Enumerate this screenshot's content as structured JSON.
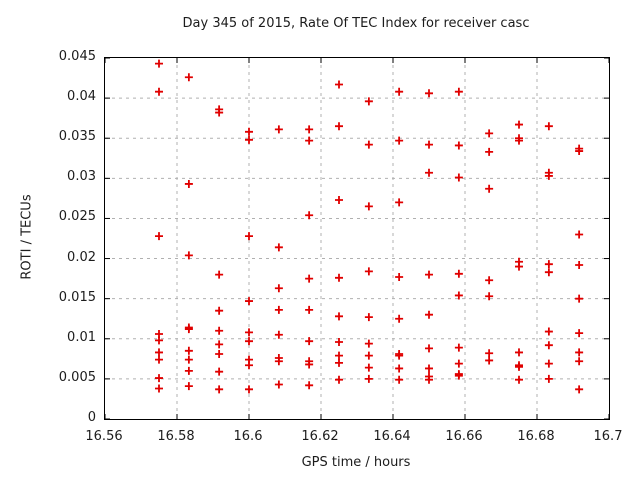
{
  "chart": {
    "title": "Day 345 of 2015, Rate Of TEC Index for receiver casc",
    "xlabel": "GPS time / hours",
    "ylabel": "ROTI / TECUs"
  },
  "chart_data": {
    "type": "scatter",
    "title": "Day 345 of 2015, Rate Of TEC Index for receiver casc",
    "xlabel": "GPS time / hours",
    "ylabel": "ROTI / TECUs",
    "xlim": [
      16.56,
      16.7
    ],
    "ylim": [
      0,
      0.045
    ],
    "xticks": [
      "16.56",
      "16.58",
      "16.6",
      "16.62",
      "16.64",
      "16.66",
      "16.68",
      "16.7"
    ],
    "xtick_values": [
      16.56,
      16.58,
      16.6,
      16.62,
      16.64,
      16.66,
      16.68,
      16.7
    ],
    "yticks": [
      "0",
      "0.005",
      "0.01",
      "0.015",
      "0.02",
      "0.025",
      "0.03",
      "0.035",
      "0.04",
      "0.045"
    ],
    "ytick_values": [
      0,
      0.005,
      0.01,
      0.015,
      0.02,
      0.025,
      0.03,
      0.035,
      0.04,
      0.045
    ],
    "grid": true,
    "legend": "none",
    "marker": {
      "symbol": "plus",
      "color": "#e00000",
      "size": 9
    },
    "points": [
      [
        16.575,
        0.0443
      ],
      [
        16.575,
        0.0408
      ],
      [
        16.575,
        0.0228
      ],
      [
        16.575,
        0.0106
      ],
      [
        16.575,
        0.0098
      ],
      [
        16.575,
        0.0083
      ],
      [
        16.575,
        0.0074
      ],
      [
        16.575,
        0.0051
      ],
      [
        16.575,
        0.0038
      ],
      [
        16.5833,
        0.0426
      ],
      [
        16.5833,
        0.0293
      ],
      [
        16.5833,
        0.0204
      ],
      [
        16.5833,
        0.0114
      ],
      [
        16.5833,
        0.0112
      ],
      [
        16.5833,
        0.0085
      ],
      [
        16.5833,
        0.0074
      ],
      [
        16.5833,
        0.006
      ],
      [
        16.5833,
        0.0041
      ],
      [
        16.5917,
        0.0386
      ],
      [
        16.5917,
        0.0382
      ],
      [
        16.5917,
        0.018
      ],
      [
        16.5917,
        0.0135
      ],
      [
        16.5917,
        0.011
      ],
      [
        16.5917,
        0.0093
      ],
      [
        16.5917,
        0.0081
      ],
      [
        16.5917,
        0.0059
      ],
      [
        16.5917,
        0.0037
      ],
      [
        16.6,
        0.0358
      ],
      [
        16.6,
        0.0348
      ],
      [
        16.6,
        0.0228
      ],
      [
        16.6,
        0.0147
      ],
      [
        16.6,
        0.0108
      ],
      [
        16.6,
        0.0097
      ],
      [
        16.6,
        0.0074
      ],
      [
        16.6,
        0.0067
      ],
      [
        16.6,
        0.0037
      ],
      [
        16.6083,
        0.0361
      ],
      [
        16.6083,
        0.0214
      ],
      [
        16.6083,
        0.0163
      ],
      [
        16.6083,
        0.0136
      ],
      [
        16.6083,
        0.0105
      ],
      [
        16.6083,
        0.0076
      ],
      [
        16.6083,
        0.0072
      ],
      [
        16.6083,
        0.0043
      ],
      [
        16.6167,
        0.0361
      ],
      [
        16.6167,
        0.0347
      ],
      [
        16.6167,
        0.0254
      ],
      [
        16.6167,
        0.0175
      ],
      [
        16.6167,
        0.0136
      ],
      [
        16.6167,
        0.0097
      ],
      [
        16.6167,
        0.0072
      ],
      [
        16.6167,
        0.0068
      ],
      [
        16.6167,
        0.0042
      ],
      [
        16.625,
        0.0417
      ],
      [
        16.625,
        0.0365
      ],
      [
        16.625,
        0.0273
      ],
      [
        16.625,
        0.0176
      ],
      [
        16.625,
        0.0128
      ],
      [
        16.625,
        0.0096
      ],
      [
        16.625,
        0.0079
      ],
      [
        16.625,
        0.007
      ],
      [
        16.625,
        0.0049
      ],
      [
        16.6333,
        0.0396
      ],
      [
        16.6333,
        0.0342
      ],
      [
        16.6333,
        0.0265
      ],
      [
        16.6333,
        0.0184
      ],
      [
        16.6333,
        0.0127
      ],
      [
        16.6333,
        0.0094
      ],
      [
        16.6333,
        0.0079
      ],
      [
        16.6333,
        0.0064
      ],
      [
        16.6333,
        0.005
      ],
      [
        16.6417,
        0.0408
      ],
      [
        16.6417,
        0.0347
      ],
      [
        16.6417,
        0.027
      ],
      [
        16.6417,
        0.0177
      ],
      [
        16.6417,
        0.0125
      ],
      [
        16.6417,
        0.0081
      ],
      [
        16.6417,
        0.0079
      ],
      [
        16.6417,
        0.0063
      ],
      [
        16.6417,
        0.0049
      ],
      [
        16.65,
        0.0406
      ],
      [
        16.65,
        0.0342
      ],
      [
        16.65,
        0.0307
      ],
      [
        16.65,
        0.018
      ],
      [
        16.65,
        0.013
      ],
      [
        16.65,
        0.0088
      ],
      [
        16.65,
        0.0063
      ],
      [
        16.65,
        0.0053
      ],
      [
        16.65,
        0.0049
      ],
      [
        16.6583,
        0.0408
      ],
      [
        16.6583,
        0.0341
      ],
      [
        16.6583,
        0.0301
      ],
      [
        16.6583,
        0.0181
      ],
      [
        16.6583,
        0.0154
      ],
      [
        16.6583,
        0.0089
      ],
      [
        16.6583,
        0.0069
      ],
      [
        16.6583,
        0.0056
      ],
      [
        16.6583,
        0.0054
      ],
      [
        16.6667,
        0.0356
      ],
      [
        16.6667,
        0.0333
      ],
      [
        16.6667,
        0.0287
      ],
      [
        16.6667,
        0.0173
      ],
      [
        16.6667,
        0.0153
      ],
      [
        16.6667,
        0.0082
      ],
      [
        16.6667,
        0.0073
      ],
      [
        16.675,
        0.0367
      ],
      [
        16.675,
        0.035
      ],
      [
        16.675,
        0.0347
      ],
      [
        16.675,
        0.0196
      ],
      [
        16.675,
        0.019
      ],
      [
        16.675,
        0.0083
      ],
      [
        16.675,
        0.0067
      ],
      [
        16.675,
        0.0065
      ],
      [
        16.675,
        0.0049
      ],
      [
        16.6833,
        0.0365
      ],
      [
        16.6833,
        0.0307
      ],
      [
        16.6833,
        0.0303
      ],
      [
        16.6833,
        0.0193
      ],
      [
        16.6833,
        0.0183
      ],
      [
        16.6833,
        0.0109
      ],
      [
        16.6833,
        0.0092
      ],
      [
        16.6833,
        0.0069
      ],
      [
        16.6833,
        0.005
      ],
      [
        16.6917,
        0.0337
      ],
      [
        16.6917,
        0.0334
      ],
      [
        16.6917,
        0.023
      ],
      [
        16.6917,
        0.0192
      ],
      [
        16.6917,
        0.015
      ],
      [
        16.6917,
        0.0107
      ],
      [
        16.6917,
        0.0083
      ],
      [
        16.6917,
        0.0072
      ],
      [
        16.6917,
        0.0037
      ]
    ]
  }
}
